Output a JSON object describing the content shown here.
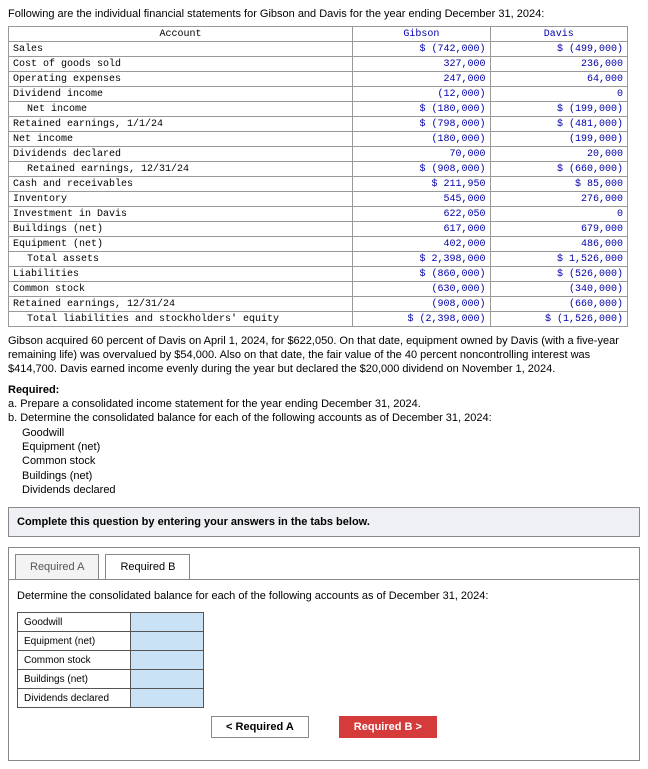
{
  "intro": "Following are the individual financial statements for Gibson and Davis for the year ending December 31, 2024:",
  "table": {
    "headers": {
      "acct": "Account",
      "c1": "Gibson",
      "c2": "Davis"
    },
    "rows": [
      {
        "label": "Sales",
        "indent": 0,
        "c1": "$ (742,000)",
        "c2": "$ (499,000)"
      },
      {
        "label": "Cost of goods sold",
        "indent": 0,
        "c1": "327,000",
        "c2": "236,000"
      },
      {
        "label": "Operating expenses",
        "indent": 0,
        "c1": "247,000",
        "c2": "64,000"
      },
      {
        "label": "Dividend income",
        "indent": 0,
        "c1": "(12,000)",
        "c2": "0"
      },
      {
        "label": "Net income",
        "indent": 1,
        "c1": "$ (180,000)",
        "c2": "$ (199,000)"
      },
      {
        "label": "Retained earnings, 1/1/24",
        "indent": 0,
        "c1": "$ (798,000)",
        "c2": "$ (481,000)"
      },
      {
        "label": "Net income",
        "indent": 0,
        "c1": "(180,000)",
        "c2": "(199,000)"
      },
      {
        "label": "Dividends declared",
        "indent": 0,
        "c1": "70,000",
        "c2": "20,000"
      },
      {
        "label": "Retained earnings, 12/31/24",
        "indent": 1,
        "c1": "$ (908,000)",
        "c2": "$ (660,000)"
      },
      {
        "label": "Cash and receivables",
        "indent": 0,
        "c1": "$ 211,950",
        "c2": "$ 85,000"
      },
      {
        "label": "Inventory",
        "indent": 0,
        "c1": "545,000",
        "c2": "276,000"
      },
      {
        "label": "Investment in Davis",
        "indent": 0,
        "c1": "622,050",
        "c2": "0"
      },
      {
        "label": "Buildings (net)",
        "indent": 0,
        "c1": "617,000",
        "c2": "679,000"
      },
      {
        "label": "Equipment (net)",
        "indent": 0,
        "c1": "402,000",
        "c2": "486,000"
      },
      {
        "label": "Total assets",
        "indent": 1,
        "c1": "$ 2,398,000",
        "c2": "$ 1,526,000"
      },
      {
        "label": "Liabilities",
        "indent": 0,
        "c1": "$ (860,000)",
        "c2": "$ (526,000)"
      },
      {
        "label": "Common stock",
        "indent": 0,
        "c1": "(630,000)",
        "c2": "(340,000)"
      },
      {
        "label": "Retained earnings, 12/31/24",
        "indent": 0,
        "c1": "(908,000)",
        "c2": "(660,000)"
      },
      {
        "label": "Total liabilities and stockholders' equity",
        "indent": 1,
        "c1": "$ (2,398,000)",
        "c2": "$ (1,526,000)"
      }
    ]
  },
  "paragraph": "Gibson acquired 60 percent of Davis on April 1, 2024, for $622,050. On that date, equipment owned by Davis (with a five-year remaining life) was overvalued by $54,000. Also on that date, the fair value of the 40 percent noncontrolling interest was $414,700. Davis earned income evenly during the year but declared the $20,000 dividend on November 1, 2024.",
  "requiredHeading": "Required:",
  "reqA": "a. Prepare a consolidated income statement for the year ending December 31, 2024.",
  "reqB": "b. Determine the consolidated balance for each of the following accounts as of December 31, 2024:",
  "accountsList": [
    "Goodwill",
    "Equipment (net)",
    "Common stock",
    "Buildings (net)",
    "Dividends declared"
  ],
  "instruction": "Complete this question by entering your answers in the tabs below.",
  "tabs": {
    "a": "Required A",
    "b": "Required B"
  },
  "tabBPrompt": "Determine the consolidated balance for each of the following accounts as of December 31, 2024:",
  "answerRows": [
    "Goodwill",
    "Equipment (net)",
    "Common stock",
    "Buildings (net)",
    "Dividends declared"
  ],
  "nav": {
    "prev": "<  Required A",
    "next": "Required B  >"
  }
}
